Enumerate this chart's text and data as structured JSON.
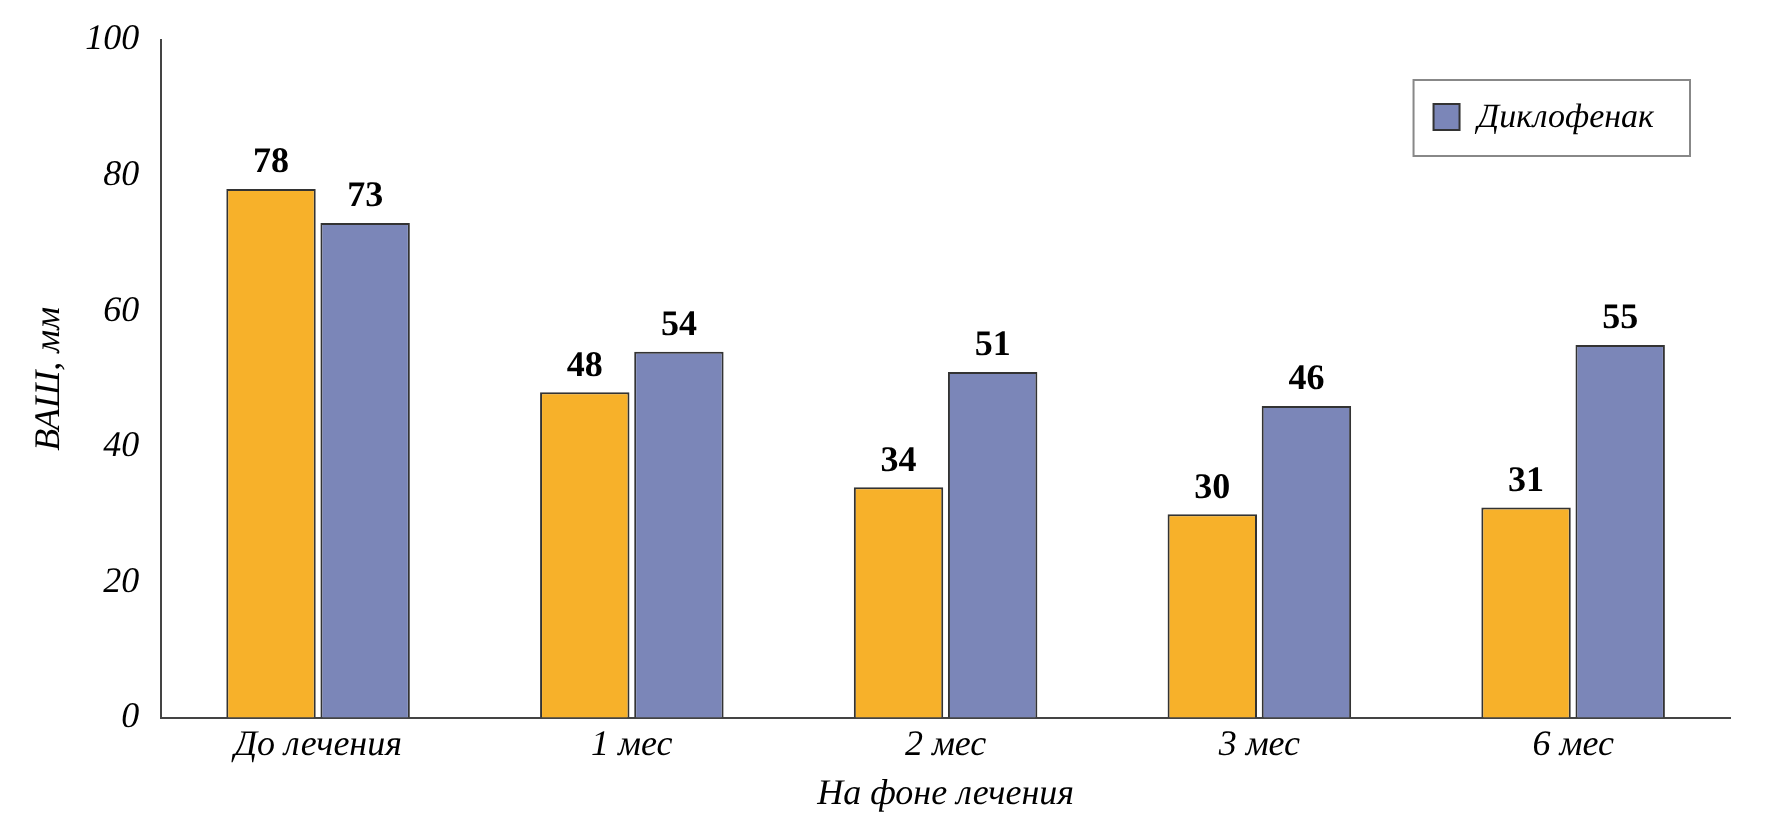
{
  "chart_data": {
    "type": "bar",
    "xlabel": "На фоне лечения",
    "ylabel": "ВАШ, мм",
    "categories": [
      "До лечения",
      "1 мес",
      "2 мес",
      "3 мес",
      "6 мес"
    ],
    "series": [
      {
        "color": "#f7b12a",
        "values": [
          78,
          48,
          34,
          30,
          31
        ]
      },
      {
        "name": "Диклофенак",
        "color": "#7b86b8",
        "values": [
          73,
          54,
          51,
          46,
          55
        ]
      }
    ],
    "ylim": [
      0,
      100
    ],
    "yticks": [
      0,
      20,
      40,
      60,
      80,
      100
    ],
    "grid": false,
    "legend": "top right",
    "data_labels": true
  }
}
